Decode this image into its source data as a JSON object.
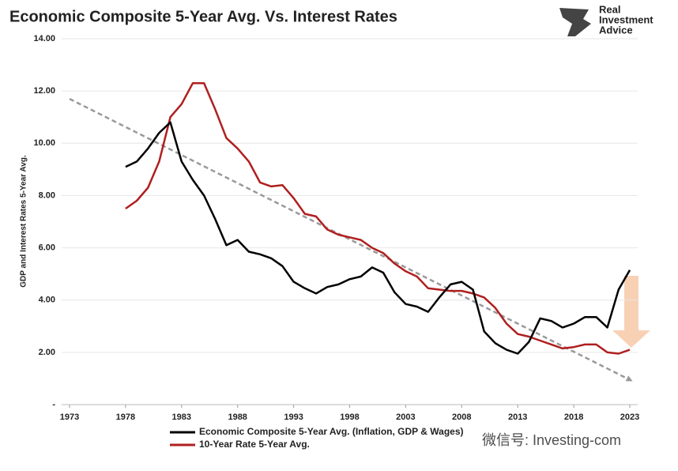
{
  "chart_data": {
    "type": "line",
    "title": "Economic Composite 5-Year Avg. Vs. Interest Rates",
    "logo": [
      "Real",
      "Investment",
      "Advice"
    ],
    "watermark": "微信号: Investing-com",
    "y_label": "GDP and Interest Rates 5-Year Avg.",
    "x": [
      1978,
      1979,
      1980,
      1981,
      1982,
      1983,
      1984,
      1985,
      1986,
      1987,
      1988,
      1989,
      1990,
      1991,
      1992,
      1993,
      1994,
      1995,
      1996,
      1997,
      1998,
      1999,
      2000,
      2001,
      2002,
      2003,
      2004,
      2005,
      2006,
      2007,
      2008,
      2009,
      2010,
      2011,
      2012,
      2013,
      2014,
      2015,
      2016,
      2017,
      2018,
      2019,
      2020,
      2021,
      2022,
      2023
    ],
    "series": [
      {
        "name": "Economic Composite 5-Year Avg. (Inflation, GDP & Wages)",
        "color": "#000000",
        "values": [
          9.1,
          9.3,
          9.8,
          10.4,
          10.8,
          9.3,
          8.6,
          8.0,
          7.1,
          6.1,
          6.3,
          5.85,
          5.75,
          5.6,
          5.3,
          4.7,
          4.45,
          4.25,
          4.5,
          4.6,
          4.8,
          4.9,
          5.25,
          5.05,
          4.3,
          3.85,
          3.75,
          3.55,
          4.1,
          4.6,
          4.7,
          4.4,
          2.8,
          2.35,
          2.1,
          1.95,
          2.4,
          3.3,
          3.2,
          2.95,
          3.1,
          3.35,
          3.35,
          2.95,
          4.4,
          5.15
        ]
      },
      {
        "name": "10-Year Rate 5-Year Avg.",
        "color": "#b01f1f",
        "values": [
          7.5,
          7.8,
          8.3,
          9.3,
          11.0,
          11.5,
          12.3,
          12.3,
          11.3,
          10.2,
          9.8,
          9.3,
          8.5,
          8.35,
          8.4,
          7.9,
          7.3,
          7.2,
          6.7,
          6.5,
          6.4,
          6.3,
          6.0,
          5.8,
          5.4,
          5.1,
          4.9,
          4.45,
          4.4,
          4.35,
          4.35,
          4.25,
          4.1,
          3.7,
          3.1,
          2.7,
          2.6,
          2.45,
          2.3,
          2.15,
          2.2,
          2.3,
          2.3,
          2.0,
          1.95,
          2.1
        ]
      }
    ],
    "trend": {
      "color": "#999999",
      "x": [
        1973,
        2023
      ],
      "values": [
        11.7,
        0.95
      ]
    },
    "xlim": [
      1973,
      2023
    ],
    "xticks": [
      1973,
      1978,
      1983,
      1988,
      1993,
      1998,
      2003,
      2008,
      2013,
      2018,
      2023
    ],
    "ylim": [
      0,
      14
    ],
    "yticks": [
      {
        "value": 0,
        "label": "-"
      },
      {
        "value": 2,
        "label": "2.00"
      },
      {
        "value": 4,
        "label": "4.00"
      },
      {
        "value": 6,
        "label": "6.00"
      },
      {
        "value": 8,
        "label": "8.00"
      },
      {
        "value": 10,
        "label": "10.00"
      },
      {
        "value": 12,
        "label": "12.00"
      },
      {
        "value": 14,
        "label": "14.00"
      }
    ],
    "grid": true
  }
}
